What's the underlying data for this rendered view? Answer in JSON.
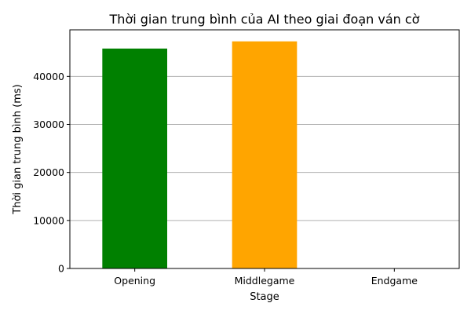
{
  "chart_data": {
    "type": "bar",
    "title": "Thời gian trung bình của AI theo giai đoạn ván cờ",
    "xlabel": "Stage",
    "ylabel": "Thời gian trung bình (ms)",
    "categories": [
      "Opening",
      "Middlegame",
      "Endgame"
    ],
    "values": [
      45800,
      47300,
      0
    ],
    "colors": [
      "#008000",
      "#ffa500",
      "#ffa500"
    ],
    "ylim": [
      0,
      49700
    ],
    "yticks": [
      0,
      10000,
      20000,
      30000,
      40000
    ],
    "ytick_labels": [
      "0",
      "10000",
      "20000",
      "30000",
      "40000"
    ],
    "grid": "y",
    "grid_color": "#b0b0b0"
  }
}
